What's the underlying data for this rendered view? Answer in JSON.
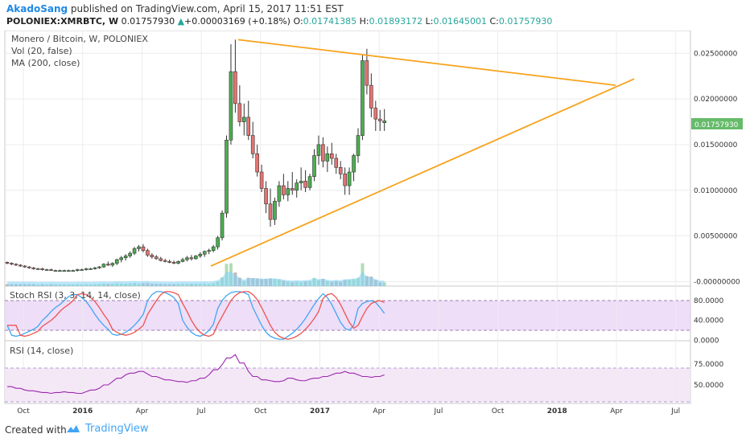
{
  "header": {
    "author": "AkadoSang",
    "published_text": "published on TradingView.com, April 15, 2017 11:51 EST",
    "symbol": "POLONIEX:XMRBTC, W",
    "last": "0.01757930",
    "change": "+0.00003169 (+0.18%)",
    "o_label": "O:",
    "o": "0.01741385",
    "h_label": "H:",
    "h": "0.01893172",
    "l_label": "L:",
    "l": "0.01645001",
    "c_label": "C:",
    "c": "0.01757930"
  },
  "legend": {
    "title": "Monero / Bitcoin, W, POLONIEX",
    "vol": "Vol (20, false)",
    "ma": "MA (200, close)",
    "stoch": "Stoch RSI (3, 3, 14, 14, close)",
    "rsi": "RSI (14, close)"
  },
  "footer": {
    "created": "Created with",
    "brand": "TradingView"
  },
  "colors": {
    "up": "#26a69a",
    "down": "#ef5350",
    "candle_up_fill": "#4caf50",
    "candle_down_fill": "#e57373",
    "trendline": "#f7a21b",
    "stoch_k": "#42a5f5",
    "stoch_d": "#ef5350",
    "stoch_band": "#e1bee7",
    "rsi_line": "#9c27b0",
    "price_badge": "#66bb6a",
    "volume_area": "#81d4fa"
  },
  "chart_data": {
    "type": "candlestick",
    "price_axis": {
      "ticks": [
        "0.02500000",
        "0.02000000",
        "0.01500000",
        "0.01000000",
        "0.00500000",
        "-0.00000000"
      ],
      "range": [
        -0.0005,
        0.0275
      ],
      "current_label": "0.01757930"
    },
    "stoch_axis": {
      "ticks": [
        "80.0000",
        "40.0000",
        "0.0000"
      ],
      "band": [
        20,
        80
      ]
    },
    "rsi_axis": {
      "ticks": [
        "75.0000",
        "50.0000"
      ],
      "band": [
        30,
        70
      ]
    },
    "time_axis": {
      "labels": [
        "Oct",
        "2016",
        "Apr",
        "Jul",
        "Oct",
        "2017",
        "Apr",
        "Jul",
        "Oct",
        "2018",
        "Apr",
        "Jul"
      ],
      "bold": [
        "2016",
        "2017",
        "2018"
      ]
    },
    "trendlines": [
      {
        "name": "upper",
        "from": [
          "2016-08-22",
          0.0265
        ],
        "to": [
          "2018-03-25",
          0.0215
        ]
      },
      {
        "name": "lower",
        "from": [
          "2016-06-28",
          0.0017
        ],
        "to": [
          "2018-04-08",
          0.0222
        ]
      }
    ],
    "candles": [
      [
        0.0021,
        0.0022,
        0.0019,
        0.002
      ],
      [
        0.002,
        0.0021,
        0.0018,
        0.0019
      ],
      [
        0.0019,
        0.002,
        0.0017,
        0.0018
      ],
      [
        0.0018,
        0.0019,
        0.0016,
        0.0017
      ],
      [
        0.0017,
        0.0018,
        0.0015,
        0.0016
      ],
      [
        0.0016,
        0.0017,
        0.0014,
        0.0015
      ],
      [
        0.0015,
        0.0016,
        0.0013,
        0.0014
      ],
      [
        0.0014,
        0.0015,
        0.0013,
        0.0014
      ],
      [
        0.0014,
        0.0015,
        0.0012,
        0.0013
      ],
      [
        0.0013,
        0.0014,
        0.0012,
        0.0013
      ],
      [
        0.0013,
        0.0014,
        0.0012,
        0.0012
      ],
      [
        0.0012,
        0.0013,
        0.0011,
        0.0012
      ],
      [
        0.0012,
        0.0013,
        0.0011,
        0.0012
      ],
      [
        0.0012,
        0.0013,
        0.0011,
        0.0012
      ],
      [
        0.0012,
        0.0013,
        0.0011,
        0.0012
      ],
      [
        0.0012,
        0.0013,
        0.0011,
        0.0012
      ],
      [
        0.0012,
        0.0014,
        0.0011,
        0.0013
      ],
      [
        0.0013,
        0.0014,
        0.0012,
        0.0013
      ],
      [
        0.0013,
        0.0015,
        0.0012,
        0.0014
      ],
      [
        0.0014,
        0.0015,
        0.0013,
        0.0014
      ],
      [
        0.0014,
        0.0016,
        0.0013,
        0.0015
      ],
      [
        0.0015,
        0.0017,
        0.0014,
        0.0016
      ],
      [
        0.0016,
        0.002,
        0.0015,
        0.0019
      ],
      [
        0.0019,
        0.0022,
        0.0017,
        0.0018
      ],
      [
        0.0018,
        0.0021,
        0.0016,
        0.002
      ],
      [
        0.002,
        0.0025,
        0.0018,
        0.0024
      ],
      [
        0.0024,
        0.0028,
        0.0021,
        0.0026
      ],
      [
        0.0026,
        0.003,
        0.0023,
        0.0028
      ],
      [
        0.0028,
        0.0033,
        0.0026,
        0.0031
      ],
      [
        0.0031,
        0.0038,
        0.0029,
        0.0036
      ],
      [
        0.0036,
        0.004,
        0.0033,
        0.0038
      ],
      [
        0.0038,
        0.0041,
        0.0032,
        0.0034
      ],
      [
        0.0034,
        0.0036,
        0.0027,
        0.0029
      ],
      [
        0.0029,
        0.0031,
        0.0025,
        0.0027
      ],
      [
        0.0027,
        0.0029,
        0.0024,
        0.0025
      ],
      [
        0.0025,
        0.0027,
        0.0022,
        0.0023
      ],
      [
        0.0023,
        0.0025,
        0.0021,
        0.0022
      ],
      [
        0.0022,
        0.0024,
        0.002,
        0.0021
      ],
      [
        0.0021,
        0.0023,
        0.0019,
        0.002
      ],
      [
        0.002,
        0.0023,
        0.0019,
        0.0022
      ],
      [
        0.0022,
        0.0026,
        0.0021,
        0.0024
      ],
      [
        0.0024,
        0.0028,
        0.0022,
        0.0026
      ],
      [
        0.0026,
        0.0029,
        0.0023,
        0.0025
      ],
      [
        0.0025,
        0.0029,
        0.0024,
        0.0028
      ],
      [
        0.0028,
        0.0032,
        0.0026,
        0.003
      ],
      [
        0.003,
        0.0034,
        0.0027,
        0.0033
      ],
      [
        0.0033,
        0.0036,
        0.003,
        0.0034
      ],
      [
        0.0034,
        0.004,
        0.0032,
        0.0038
      ],
      [
        0.0038,
        0.005,
        0.0035,
        0.0048
      ],
      [
        0.0048,
        0.0078,
        0.0045,
        0.0075
      ],
      [
        0.0075,
        0.016,
        0.007,
        0.0155
      ],
      [
        0.0155,
        0.026,
        0.015,
        0.023
      ],
      [
        0.023,
        0.0265,
        0.0185,
        0.0195
      ],
      [
        0.0195,
        0.0215,
        0.017,
        0.0175
      ],
      [
        0.0175,
        0.0195,
        0.016,
        0.018
      ],
      [
        0.018,
        0.0198,
        0.0155,
        0.016
      ],
      [
        0.016,
        0.0175,
        0.0135,
        0.014
      ],
      [
        0.014,
        0.015,
        0.0115,
        0.012
      ],
      [
        0.012,
        0.0128,
        0.0098,
        0.0102
      ],
      [
        0.0102,
        0.011,
        0.0075,
        0.0085
      ],
      [
        0.0085,
        0.0102,
        0.006,
        0.0068
      ],
      [
        0.0068,
        0.0092,
        0.0062,
        0.0088
      ],
      [
        0.0088,
        0.011,
        0.0082,
        0.0105
      ],
      [
        0.0105,
        0.0118,
        0.009,
        0.0095
      ],
      [
        0.0095,
        0.011,
        0.0088,
        0.0102
      ],
      [
        0.0102,
        0.012,
        0.0095,
        0.01
      ],
      [
        0.01,
        0.0112,
        0.0092,
        0.0108
      ],
      [
        0.0108,
        0.0125,
        0.01,
        0.011
      ],
      [
        0.011,
        0.0122,
        0.0098,
        0.0103
      ],
      [
        0.0103,
        0.0118,
        0.01,
        0.0115
      ],
      [
        0.0115,
        0.0145,
        0.011,
        0.0138
      ],
      [
        0.0138,
        0.016,
        0.0128,
        0.015
      ],
      [
        0.015,
        0.0158,
        0.0125,
        0.0132
      ],
      [
        0.0132,
        0.0148,
        0.012,
        0.014
      ],
      [
        0.014,
        0.0152,
        0.0128,
        0.0135
      ],
      [
        0.0135,
        0.014,
        0.0118,
        0.0125
      ],
      [
        0.0125,
        0.0132,
        0.0112,
        0.0118
      ],
      [
        0.0118,
        0.0125,
        0.0095,
        0.0105
      ],
      [
        0.0105,
        0.0125,
        0.0095,
        0.012
      ],
      [
        0.012,
        0.014,
        0.011,
        0.0138
      ],
      [
        0.0138,
        0.0168,
        0.013,
        0.016
      ],
      [
        0.016,
        0.0248,
        0.0155,
        0.0242
      ],
      [
        0.0242,
        0.0255,
        0.0205,
        0.0215
      ],
      [
        0.0215,
        0.0228,
        0.018,
        0.019
      ],
      [
        0.019,
        0.0198,
        0.0165,
        0.0178
      ],
      [
        0.0178,
        0.0188,
        0.0165,
        0.0176
      ],
      [
        0.0174,
        0.0189,
        0.0165,
        0.0176
      ]
    ]
  }
}
